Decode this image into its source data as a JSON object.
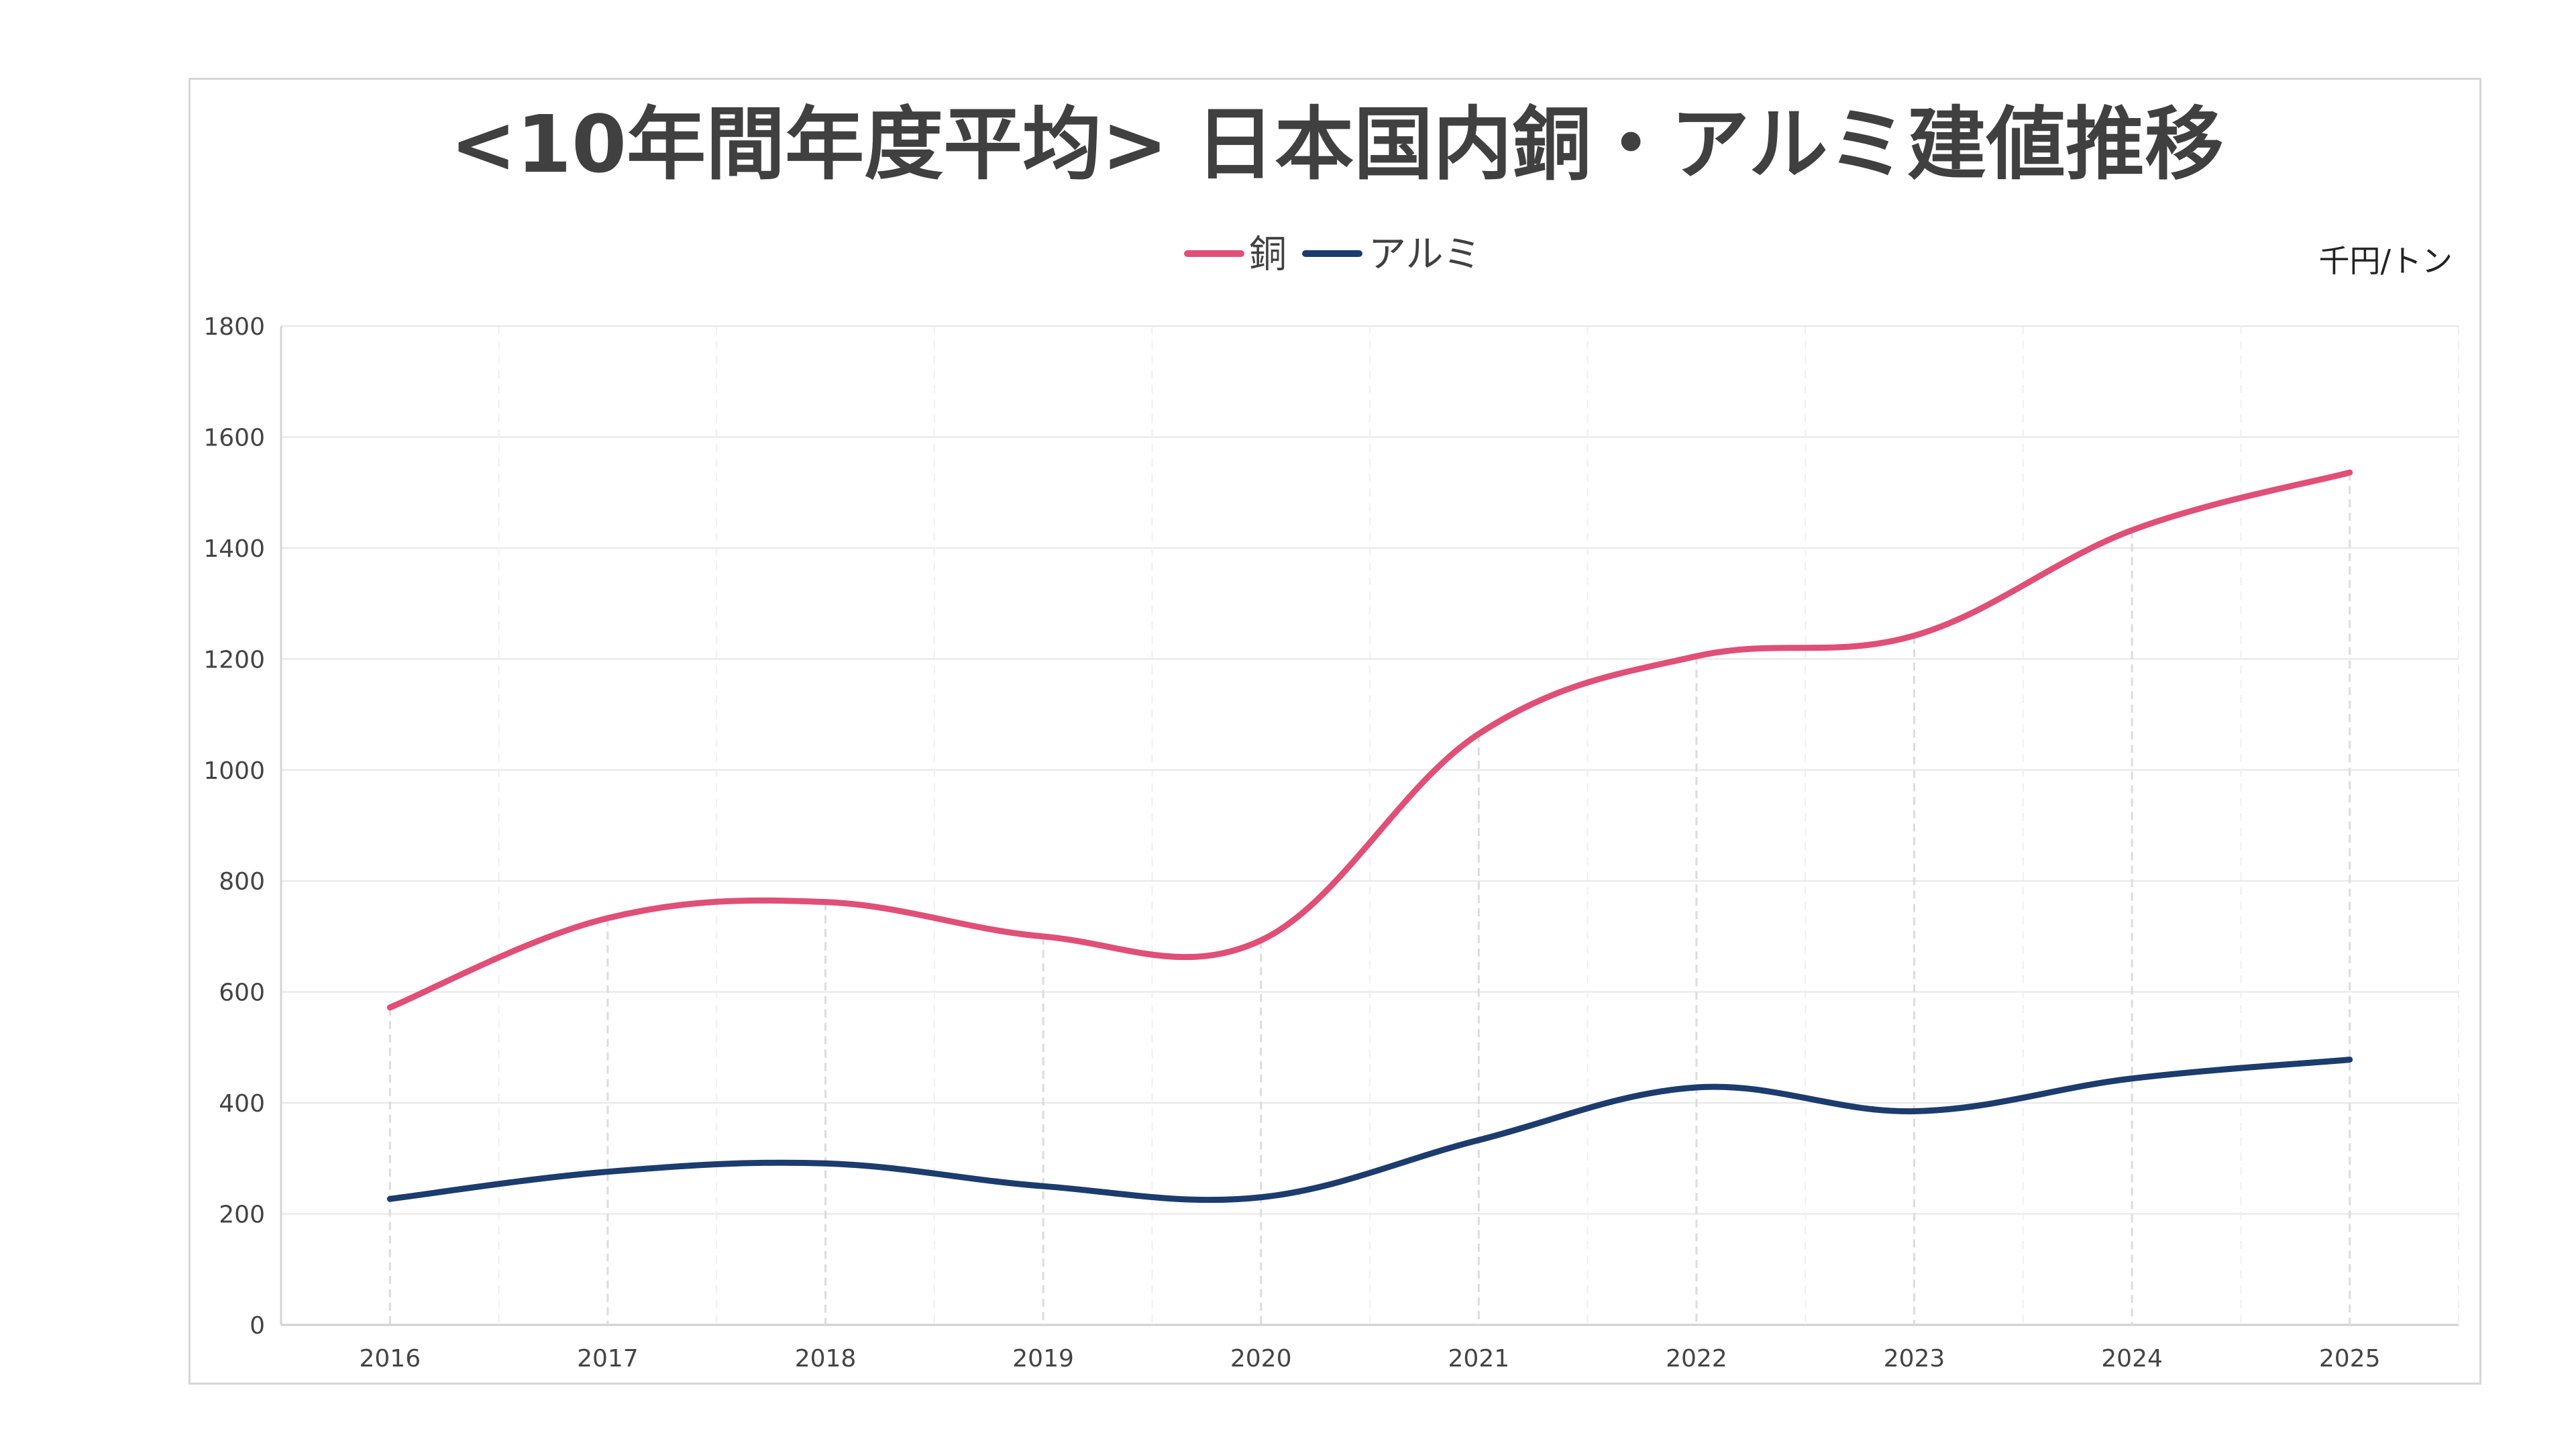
{
  "chart_data": {
    "type": "line",
    "title": "<10年間年度平均> 日本国内銅・アルミ建値推移",
    "unit_label": "千円/トン",
    "xlabel": "",
    "ylabel": "",
    "categories": [
      "2016",
      "2017",
      "2018",
      "2019",
      "2020",
      "2021",
      "2022",
      "2023",
      "2024",
      "2025"
    ],
    "ylim": [
      0,
      1800
    ],
    "yticks": [
      0,
      200,
      400,
      600,
      800,
      1000,
      1200,
      1400,
      1600,
      1800
    ],
    "ytick_labels": [
      "0",
      "200",
      "400",
      "600",
      "800",
      "1000",
      "1200",
      "1400",
      "1600",
      "1800"
    ],
    "legend_position": "top-center",
    "grid": true,
    "series": [
      {
        "name": "銅",
        "color": "#e04f78",
        "values": [
          572,
          733,
          762,
          700,
          693,
          1065,
          1205,
          1242,
          1432,
          1536
        ]
      },
      {
        "name": "アルミ",
        "color": "#1c3c6e",
        "values": [
          227,
          276,
          291,
          250,
          230,
          333,
          428,
          385,
          444,
          478
        ]
      }
    ]
  }
}
